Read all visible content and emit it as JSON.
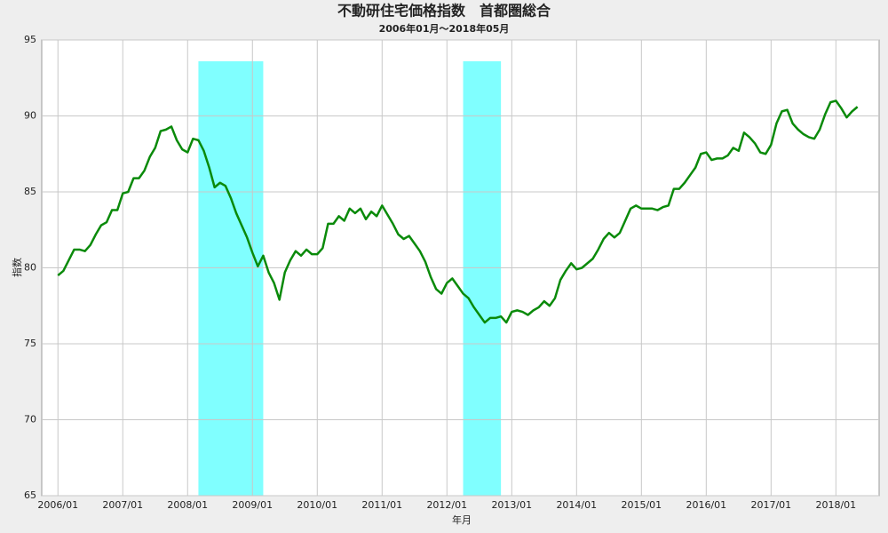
{
  "chart_data": {
    "type": "line",
    "title": "不動研住宅価格指数　首都圏総合",
    "subtitle": "2006年01月～2018年05月",
    "x_label": "年月",
    "y_label": "指数",
    "x": [
      "2006/01",
      "2006/02",
      "2006/03",
      "2006/04",
      "2006/05",
      "2006/06",
      "2006/07",
      "2006/08",
      "2006/09",
      "2006/10",
      "2006/11",
      "2006/12",
      "2007/01",
      "2007/02",
      "2007/03",
      "2007/04",
      "2007/05",
      "2007/06",
      "2007/07",
      "2007/08",
      "2007/09",
      "2007/10",
      "2007/11",
      "2007/12",
      "2008/01",
      "2008/02",
      "2008/03",
      "2008/04",
      "2008/05",
      "2008/06",
      "2008/07",
      "2008/08",
      "2008/09",
      "2008/10",
      "2008/11",
      "2008/12",
      "2009/01",
      "2009/02",
      "2009/03",
      "2009/04",
      "2009/05",
      "2009/06",
      "2009/07",
      "2009/08",
      "2009/09",
      "2009/10",
      "2009/11",
      "2009/12",
      "2010/01",
      "2010/02",
      "2010/03",
      "2010/04",
      "2010/05",
      "2010/06",
      "2010/07",
      "2010/08",
      "2010/09",
      "2010/10",
      "2010/11",
      "2010/12",
      "2011/01",
      "2011/02",
      "2011/03",
      "2011/04",
      "2011/05",
      "2011/06",
      "2011/07",
      "2011/08",
      "2011/09",
      "2011/10",
      "2011/11",
      "2011/12",
      "2012/01",
      "2012/02",
      "2012/03",
      "2012/04",
      "2012/05",
      "2012/06",
      "2012/07",
      "2012/08",
      "2012/09",
      "2012/10",
      "2012/11",
      "2012/12",
      "2013/01",
      "2013/02",
      "2013/03",
      "2013/04",
      "2013/05",
      "2013/06",
      "2013/07",
      "2013/08",
      "2013/09",
      "2013/10",
      "2013/11",
      "2013/12",
      "2014/01",
      "2014/02",
      "2014/03",
      "2014/04",
      "2014/05",
      "2014/06",
      "2014/07",
      "2014/08",
      "2014/09",
      "2014/10",
      "2014/11",
      "2014/12",
      "2015/01",
      "2015/02",
      "2015/03",
      "2015/04",
      "2015/05",
      "2015/06",
      "2015/07",
      "2015/08",
      "2015/09",
      "2015/10",
      "2015/11",
      "2015/12",
      "2016/01",
      "2016/02",
      "2016/03",
      "2016/04",
      "2016/05",
      "2016/06",
      "2016/07",
      "2016/08",
      "2016/09",
      "2016/10",
      "2016/11",
      "2016/12",
      "2017/01",
      "2017/02",
      "2017/03",
      "2017/04",
      "2017/05",
      "2017/06",
      "2017/07",
      "2017/08",
      "2017/09",
      "2017/10",
      "2017/11",
      "2017/12",
      "2018/01",
      "2018/02",
      "2018/03",
      "2018/04",
      "2018/05"
    ],
    "series": [
      {
        "color": "#0a8a0a",
        "values": [
          79.5,
          79.8,
          80.5,
          81.2,
          81.2,
          81.1,
          81.5,
          82.2,
          82.8,
          83.0,
          83.8,
          83.8,
          84.9,
          85.0,
          85.9,
          85.9,
          86.4,
          87.3,
          87.9,
          89.0,
          89.1,
          89.3,
          88.4,
          87.8,
          87.6,
          88.5,
          88.4,
          87.7,
          86.6,
          85.3,
          85.6,
          85.4,
          84.6,
          83.6,
          82.8,
          82.0,
          81.0,
          80.1,
          80.8,
          79.7,
          79.0,
          77.9,
          79.7,
          80.5,
          81.1,
          80.8,
          81.2,
          80.9,
          80.9,
          81.3,
          82.9,
          82.9,
          83.4,
          83.1,
          83.9,
          83.6,
          83.9,
          83.2,
          83.7,
          83.4,
          84.1,
          83.5,
          82.9,
          82.2,
          81.9,
          82.1,
          81.6,
          81.1,
          80.4,
          79.4,
          78.6,
          78.3,
          79.0,
          79.3,
          78.8,
          78.3,
          78.0,
          77.4,
          76.9,
          76.4,
          76.7,
          76.7,
          76.8,
          76.4,
          77.1,
          77.2,
          77.1,
          76.9,
          77.2,
          77.4,
          77.8,
          77.5,
          78.0,
          79.2,
          79.8,
          80.3,
          79.9,
          80.0,
          80.3,
          80.6,
          81.2,
          81.9,
          82.3,
          82.0,
          82.3,
          83.1,
          83.9,
          84.1,
          83.9,
          83.9,
          83.9,
          83.8,
          84.0,
          84.1,
          85.2,
          85.2,
          85.6,
          86.1,
          86.6,
          87.5,
          87.6,
          87.1,
          87.2,
          87.2,
          87.4,
          87.9,
          87.7,
          88.9,
          88.6,
          88.2,
          87.6,
          87.5,
          88.1,
          89.5,
          90.3,
          90.4,
          89.5,
          89.1,
          88.8,
          88.6,
          88.5,
          89.1,
          90.1,
          90.9,
          91.0,
          90.5,
          89.9,
          90.3,
          90.6
        ]
      }
    ],
    "shaded": [
      {
        "start": "2008/03",
        "end": "2009/03"
      },
      {
        "start": "2012/04",
        "end": "2012/11"
      }
    ],
    "shade_color": "#80ffff",
    "shade_top": 93.6,
    "xlim": [
      "2005/10",
      "2018/09"
    ],
    "xticks": [
      "2006/01",
      "2007/01",
      "2008/01",
      "2009/01",
      "2010/01",
      "2011/01",
      "2012/01",
      "2013/01",
      "2014/01",
      "2015/01",
      "2016/01",
      "2017/01",
      "2018/01"
    ],
    "ylim": [
      65,
      95
    ],
    "yticks": [
      65,
      70,
      75,
      80,
      85,
      90,
      95
    ],
    "grid": true
  }
}
